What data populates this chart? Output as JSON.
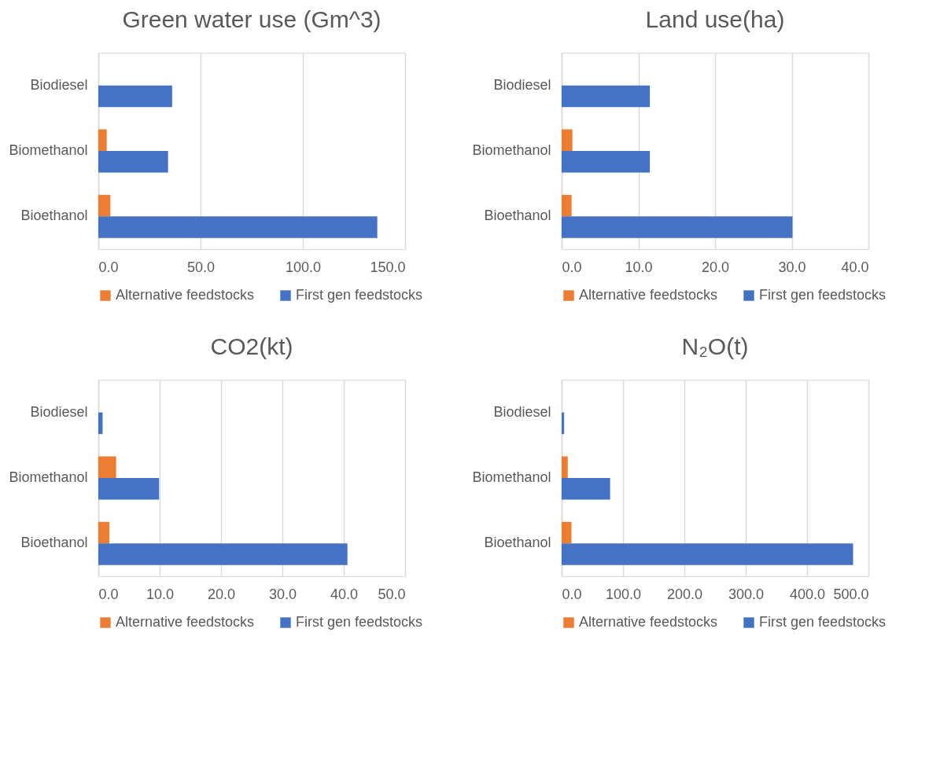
{
  "chart_data": [
    {
      "type": "bar",
      "orientation": "horizontal",
      "title": "Green water use (Gm^3)",
      "categories": [
        "Biodiesel",
        "Biomethanol",
        "Bioethanol"
      ],
      "series": [
        {
          "name": "Alternative feedstocks",
          "color": "#ed7d31",
          "values": [
            0,
            4.1,
            5.9
          ]
        },
        {
          "name": "First gen feedstocks",
          "color": "#4472c4",
          "values": [
            36.1,
            34.1,
            136.4
          ]
        }
      ],
      "xlim": [
        0,
        150
      ],
      "xticks": [
        {
          "value": 0,
          "label": "0.0"
        },
        {
          "value": 50,
          "label": "50.0"
        },
        {
          "value": 100,
          "label": "100.0"
        },
        {
          "value": 150,
          "label": "150.0"
        }
      ],
      "grid": "x",
      "legend": "bottom"
    },
    {
      "type": "bar",
      "orientation": "horizontal",
      "title": "Land use(ha)",
      "categories": [
        "Biodiesel",
        "Biomethanol",
        "Bioethanol"
      ],
      "series": [
        {
          "name": "Alternative feedstocks",
          "color": "#ed7d31",
          "values": [
            0,
            1.4,
            1.3
          ]
        },
        {
          "name": "First gen feedstocks",
          "color": "#4472c4",
          "values": [
            11.5,
            11.5,
            30.1
          ]
        }
      ],
      "xlim": [
        0,
        40
      ],
      "xticks": [
        {
          "value": 0,
          "label": "0.0"
        },
        {
          "value": 10,
          "label": "10.0"
        },
        {
          "value": 20,
          "label": "20.0"
        },
        {
          "value": 30,
          "label": "30.0"
        },
        {
          "value": 40,
          "label": "40.0"
        }
      ],
      "grid": "x",
      "legend": "bottom"
    },
    {
      "type": "bar",
      "orientation": "horizontal",
      "title": "CO2(kt)",
      "categories": [
        "Biodiesel",
        "Biomethanol",
        "Bioethanol"
      ],
      "series": [
        {
          "name": "Alternative feedstocks",
          "color": "#ed7d31",
          "values": [
            0,
            2.9,
            1.8
          ]
        },
        {
          "name": "First gen feedstocks",
          "color": "#4472c4",
          "values": [
            0.7,
            9.9,
            40.6
          ]
        }
      ],
      "xlim": [
        0,
        50
      ],
      "xticks": [
        {
          "value": 0,
          "label": "0.0"
        },
        {
          "value": 10,
          "label": "10.0"
        },
        {
          "value": 20,
          "label": "20.0"
        },
        {
          "value": 30,
          "label": "30.0"
        },
        {
          "value": 40,
          "label": "40.0"
        },
        {
          "value": 50,
          "label": "50.0"
        }
      ],
      "grid": "x",
      "legend": "bottom"
    },
    {
      "type": "bar",
      "orientation": "horizontal",
      "title": "N₂O(t)",
      "categories": [
        "Biodiesel",
        "Biomethanol",
        "Bioethanol"
      ],
      "series": [
        {
          "name": "Alternative feedstocks",
          "color": "#ed7d31",
          "values": [
            0,
            10,
            16
          ]
        },
        {
          "name": "First gen feedstocks",
          "color": "#4472c4",
          "values": [
            4,
            79,
            475
          ]
        }
      ],
      "xlim": [
        0,
        500
      ],
      "xticks": [
        {
          "value": 0,
          "label": "0.0"
        },
        {
          "value": 100,
          "label": "100.0"
        },
        {
          "value": 200,
          "label": "200.0"
        },
        {
          "value": 300,
          "label": "300.0"
        },
        {
          "value": 400,
          "label": "400.0"
        },
        {
          "value": 500,
          "label": "500.0"
        }
      ],
      "grid": "x",
      "legend": "bottom"
    }
  ]
}
